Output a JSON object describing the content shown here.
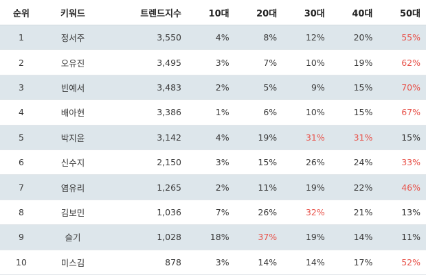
{
  "table": {
    "headers": {
      "rank": "순위",
      "keyword": "키워드",
      "trend": "트렌드지수",
      "age10": "10대",
      "age20": "20대",
      "age30": "30대",
      "age40": "40대",
      "age50": "50대"
    },
    "highlight_color": "#e8534b",
    "stripe_color": "#dde6eb",
    "rows": [
      {
        "rank": "1",
        "keyword": "정서주",
        "trend": "3,550",
        "age10": "4%",
        "age20": "8%",
        "age30": "12%",
        "age40": "20%",
        "age50": "55%",
        "highlight": [
          "age50"
        ]
      },
      {
        "rank": "2",
        "keyword": "오유진",
        "trend": "3,495",
        "age10": "3%",
        "age20": "7%",
        "age30": "10%",
        "age40": "19%",
        "age50": "62%",
        "highlight": [
          "age50"
        ]
      },
      {
        "rank": "3",
        "keyword": "빈예서",
        "trend": "3,483",
        "age10": "2%",
        "age20": "5%",
        "age30": "9%",
        "age40": "15%",
        "age50": "70%",
        "highlight": [
          "age50"
        ]
      },
      {
        "rank": "4",
        "keyword": "배아현",
        "trend": "3,386",
        "age10": "1%",
        "age20": "6%",
        "age30": "10%",
        "age40": "15%",
        "age50": "67%",
        "highlight": [
          "age50"
        ]
      },
      {
        "rank": "5",
        "keyword": "박지윤",
        "trend": "3,142",
        "age10": "4%",
        "age20": "19%",
        "age30": "31%",
        "age40": "31%",
        "age50": "15%",
        "highlight": [
          "age30",
          "age40"
        ]
      },
      {
        "rank": "6",
        "keyword": "신수지",
        "trend": "2,150",
        "age10": "3%",
        "age20": "15%",
        "age30": "26%",
        "age40": "24%",
        "age50": "33%",
        "highlight": [
          "age50"
        ]
      },
      {
        "rank": "7",
        "keyword": "염유리",
        "trend": "1,265",
        "age10": "2%",
        "age20": "11%",
        "age30": "19%",
        "age40": "22%",
        "age50": "46%",
        "highlight": [
          "age50"
        ]
      },
      {
        "rank": "8",
        "keyword": "김보민",
        "trend": "1,036",
        "age10": "7%",
        "age20": "26%",
        "age30": "32%",
        "age40": "21%",
        "age50": "13%",
        "highlight": [
          "age30"
        ]
      },
      {
        "rank": "9",
        "keyword": "슬기",
        "trend": "1,028",
        "age10": "18%",
        "age20": "37%",
        "age30": "19%",
        "age40": "14%",
        "age50": "11%",
        "highlight": [
          "age20"
        ]
      },
      {
        "rank": "10",
        "keyword": "미스김",
        "trend": "878",
        "age10": "3%",
        "age20": "14%",
        "age30": "14%",
        "age40": "17%",
        "age50": "52%",
        "highlight": [
          "age50"
        ]
      }
    ]
  }
}
